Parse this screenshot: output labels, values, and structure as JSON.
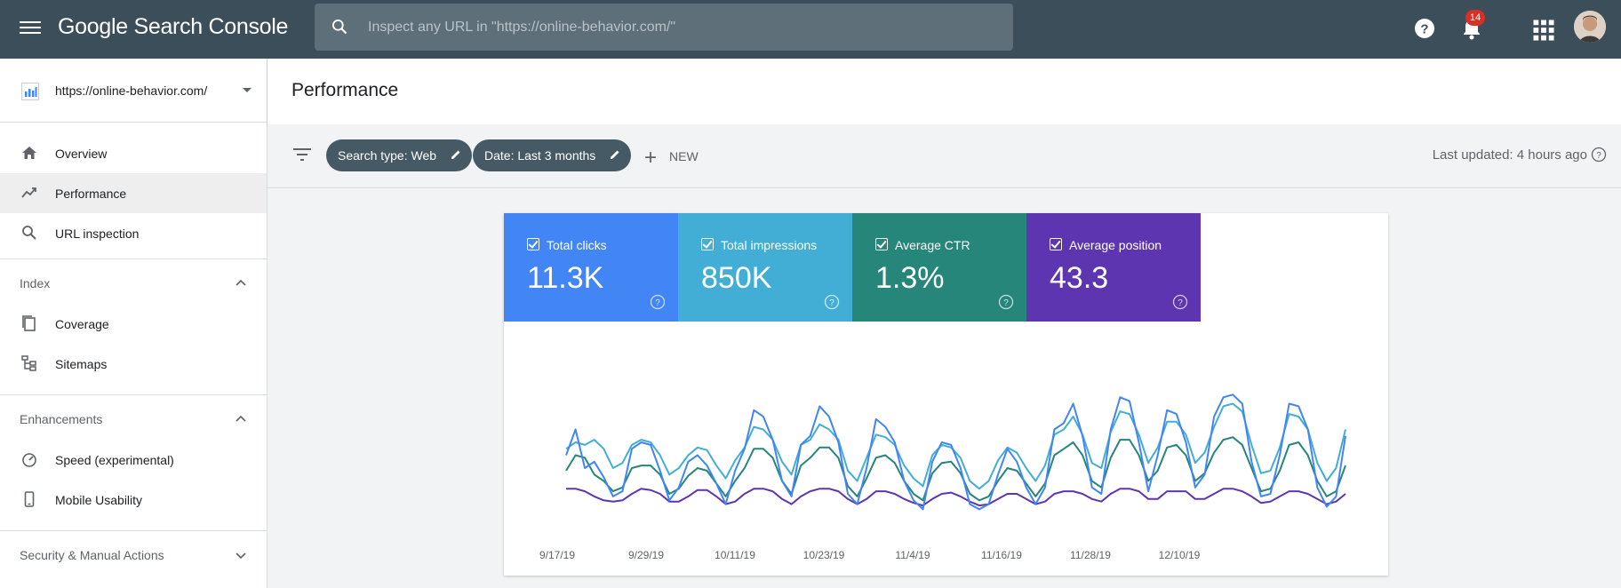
{
  "topbar": {
    "app_title": "Google Search Console",
    "search_placeholder": "Inspect any URL in \"https://online-behavior.com/\"",
    "notification_count": "14"
  },
  "sidebar": {
    "property": "https://online-behavior.com/",
    "items": [
      {
        "label": "Overview",
        "icon": "home-icon"
      },
      {
        "label": "Performance",
        "icon": "trending-icon",
        "active": true
      },
      {
        "label": "URL inspection",
        "icon": "search-icon"
      }
    ],
    "index": {
      "label": "Index",
      "items": [
        {
          "label": "Coverage",
          "icon": "coverage-icon"
        },
        {
          "label": "Sitemaps",
          "icon": "sitemap-icon"
        }
      ]
    },
    "enhancements": {
      "label": "Enhancements",
      "items": [
        {
          "label": "Speed (experimental)",
          "icon": "speed-icon"
        },
        {
          "label": "Mobile Usability",
          "icon": "phone-icon"
        }
      ]
    },
    "security": {
      "label": "Security & Manual Actions"
    }
  },
  "main": {
    "title": "Performance",
    "filters": {
      "search_type": "Search type: Web",
      "date": "Date: Last 3 months",
      "new_label": "NEW",
      "last_updated": "Last updated: 4 hours ago"
    },
    "metrics": [
      {
        "label": "Total clicks",
        "value": "11.3K",
        "color": "#4285f4"
      },
      {
        "label": "Total impressions",
        "value": "850K",
        "color": "#42aed6"
      },
      {
        "label": "Average CTR",
        "value": "1.3%",
        "color": "#26867a"
      },
      {
        "label": "Average position",
        "value": "43.3",
        "color": "#5e35b1"
      }
    ]
  },
  "chart_data": {
    "type": "line",
    "x_ticks": [
      "9/17/19",
      "9/29/19",
      "10/11/19",
      "10/23/19",
      "11/4/19",
      "11/16/19",
      "11/28/19",
      "12/10/19"
    ],
    "ylim": [
      0,
      100
    ],
    "grid": false,
    "series": [
      {
        "name": "Total clicks",
        "color": "#4285f4",
        "values": [
          50,
          70,
          40,
          45,
          33,
          18,
          22,
          55,
          60,
          58,
          38,
          15,
          25,
          45,
          50,
          42,
          28,
          12,
          38,
          55,
          85,
          80,
          62,
          30,
          18,
          58,
          65,
          88,
          80,
          60,
          20,
          12,
          40,
          78,
          72,
          60,
          30,
          15,
          8,
          45,
          60,
          58,
          40,
          12,
          8,
          12,
          35,
          55,
          45,
          25,
          12,
          25,
          70,
          75,
          90,
          65,
          25,
          20,
          70,
          95,
          92,
          60,
          22,
          50,
          85,
          82,
          60,
          25,
          35,
          80,
          95,
          97,
          90,
          45,
          18,
          20,
          50,
          90,
          88,
          70,
          25,
          10,
          18,
          65
        ]
      },
      {
        "name": "Total impressions",
        "color": "#42aed6",
        "values": [
          55,
          60,
          58,
          62,
          55,
          40,
          44,
          58,
          62,
          60,
          50,
          35,
          40,
          50,
          56,
          54,
          42,
          32,
          46,
          56,
          72,
          70,
          62,
          45,
          35,
          58,
          62,
          74,
          70,
          62,
          38,
          30,
          48,
          66,
          64,
          58,
          42,
          32,
          26,
          50,
          58,
          56,
          48,
          30,
          24,
          30,
          46,
          56,
          52,
          40,
          30,
          42,
          66,
          70,
          80,
          66,
          44,
          40,
          68,
          84,
          82,
          66,
          44,
          56,
          76,
          76,
          66,
          44,
          52,
          72,
          88,
          90,
          84,
          58,
          36,
          38,
          56,
          82,
          80,
          70,
          44,
          30,
          40,
          70
        ]
      },
      {
        "name": "Average CTR",
        "color": "#26867a",
        "values": [
          38,
          50,
          48,
          35,
          30,
          22,
          25,
          40,
          42,
          42,
          35,
          20,
          24,
          34,
          40,
          38,
          28,
          18,
          30,
          40,
          55,
          55,
          48,
          30,
          20,
          42,
          48,
          56,
          56,
          48,
          26,
          18,
          32,
          48,
          50,
          44,
          30,
          20,
          15,
          36,
          44,
          45,
          36,
          20,
          15,
          18,
          30,
          40,
          38,
          28,
          18,
          28,
          50,
          55,
          60,
          50,
          30,
          25,
          48,
          62,
          62,
          50,
          30,
          38,
          56,
          58,
          50,
          30,
          36,
          52,
          62,
          64,
          58,
          40,
          22,
          24,
          38,
          58,
          60,
          50,
          30,
          18,
          22,
          42
        ]
      },
      {
        "name": "Average position",
        "color": "#5e35b1",
        "values": [
          24,
          24,
          22,
          18,
          15,
          14,
          15,
          20,
          24,
          23,
          20,
          14,
          14,
          18,
          23,
          23,
          18,
          12,
          14,
          20,
          24,
          24,
          22,
          16,
          12,
          18,
          22,
          24,
          24,
          22,
          16,
          12,
          16,
          22,
          22,
          20,
          16,
          13,
          11,
          16,
          20,
          21,
          18,
          14,
          11,
          12,
          16,
          20,
          20,
          16,
          12,
          14,
          20,
          22,
          22,
          20,
          16,
          14,
          20,
          24,
          24,
          22,
          16,
          16,
          22,
          22,
          22,
          16,
          16,
          20,
          24,
          24,
          22,
          18,
          13,
          14,
          18,
          22,
          22,
          20,
          16,
          12,
          14,
          20
        ]
      }
    ]
  }
}
